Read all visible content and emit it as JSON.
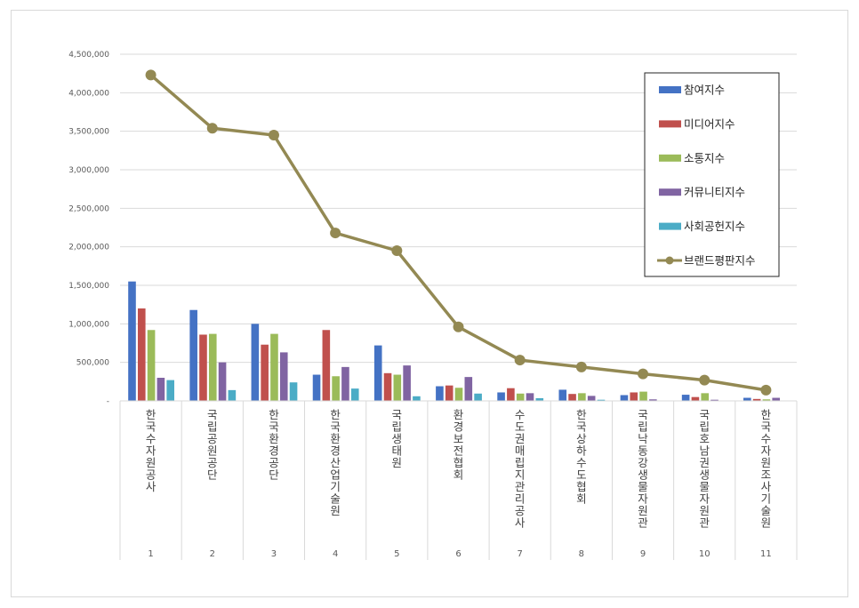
{
  "chart_data": {
    "type": "bar",
    "title": "",
    "xlabel": "",
    "ylabel": "",
    "ylim": [
      0,
      4500000
    ],
    "yticks": [
      0,
      500000,
      1000000,
      1500000,
      2000000,
      2500000,
      3000000,
      3500000,
      4000000,
      4500000
    ],
    "ytick_labels": [
      "-",
      "500,000",
      "1,000,000",
      "1,500,000",
      "2,000,000",
      "2,500,000",
      "3,000,000",
      "3,500,000",
      "4,000,000",
      "4,500,000"
    ],
    "grid": true,
    "legend_position": "top-right",
    "categories": [
      "한국수자원공사",
      "국립공원공단",
      "한국환경공단",
      "한국환경산업기술원",
      "국립생태원",
      "환경보전협회",
      "수도권매립지관리공사",
      "한국상하수도협회",
      "국립낙동강생물자원관",
      "국립호남권생물자원관",
      "한국수자원조사기술원"
    ],
    "ranks": [
      "1",
      "2",
      "3",
      "4",
      "5",
      "6",
      "7",
      "8",
      "9",
      "10",
      "11"
    ],
    "series": [
      {
        "name": "참여지수",
        "kind": "bar",
        "color": "#4472c4",
        "values": [
          1550000,
          1180000,
          1000000,
          340000,
          720000,
          190000,
          110000,
          145000,
          75000,
          80000,
          40000
        ]
      },
      {
        "name": "미디어지수",
        "kind": "bar",
        "color": "#c0504d",
        "values": [
          1200000,
          860000,
          730000,
          920000,
          360000,
          200000,
          165000,
          90000,
          110000,
          50000,
          25000
        ]
      },
      {
        "name": "소통지수",
        "kind": "bar",
        "color": "#9bbb59",
        "values": [
          920000,
          870000,
          870000,
          320000,
          340000,
          170000,
          95000,
          100000,
          120000,
          100000,
          20000
        ]
      },
      {
        "name": "커뮤니티지수",
        "kind": "bar",
        "color": "#8064a2",
        "values": [
          300000,
          500000,
          630000,
          440000,
          460000,
          310000,
          100000,
          65000,
          20000,
          15000,
          40000
        ]
      },
      {
        "name": "사회공헌지수",
        "kind": "bar",
        "color": "#4bacc6",
        "values": [
          270000,
          140000,
          240000,
          160000,
          60000,
          95000,
          35000,
          15000,
          5000,
          5000,
          5000
        ]
      },
      {
        "name": "브랜드평판지수",
        "kind": "line",
        "color": "#938953",
        "values": [
          4230000,
          3540000,
          3450000,
          2180000,
          1950000,
          960000,
          530000,
          440000,
          350000,
          270000,
          140000
        ]
      }
    ]
  }
}
